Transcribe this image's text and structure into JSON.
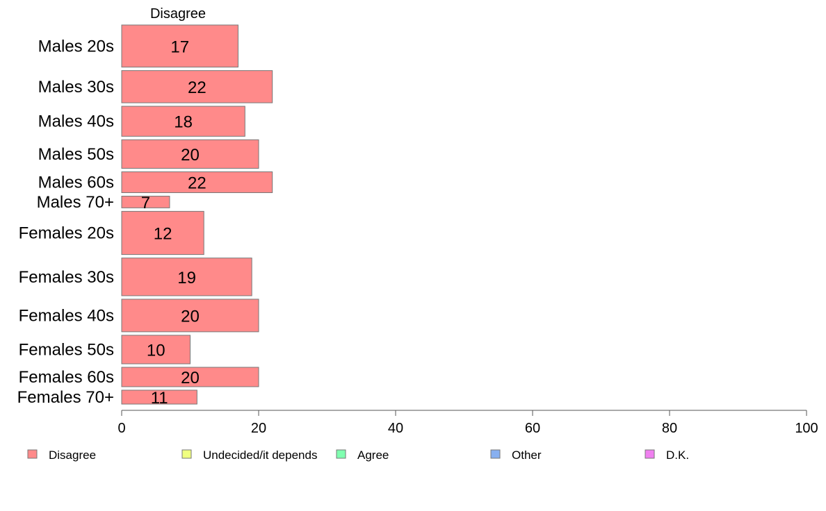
{
  "chart_data": {
    "type": "bar",
    "orientation": "horizontal",
    "stacked": true,
    "series_title": "Disagree",
    "categories": [
      "Males 20s",
      "Males 30s",
      "Males 40s",
      "Males 50s",
      "Males 60s",
      "Males 70+",
      "Females 20s",
      "Females 30s",
      "Females 40s",
      "Females 50s",
      "Females 60s",
      "Females 70+"
    ],
    "relative_group_sizes": [
      1.15,
      0.88,
      0.82,
      0.78,
      0.57,
      0.32,
      1.18,
      1.03,
      0.89,
      0.78,
      0.53,
      0.38
    ],
    "series": [
      {
        "name": "Disagree",
        "color": "#ff8a8a",
        "values": [
          17,
          22,
          18,
          20,
          22,
          7,
          12,
          19,
          20,
          10,
          20,
          11
        ]
      }
    ],
    "xlim": [
      0,
      100
    ],
    "xticks": [
      0,
      20,
      40,
      60,
      80,
      100
    ],
    "grid": false,
    "legend": {
      "placement": "bottom",
      "items": [
        {
          "label": "Disagree",
          "color": "#ff8a8a"
        },
        {
          "label": "Undecided/it depends",
          "color": "#f0ff80"
        },
        {
          "label": "Agree",
          "color": "#80ffb0"
        },
        {
          "label": "Other",
          "color": "#88b0f0"
        },
        {
          "label": "D.K.",
          "color": "#f080f0"
        }
      ]
    }
  }
}
